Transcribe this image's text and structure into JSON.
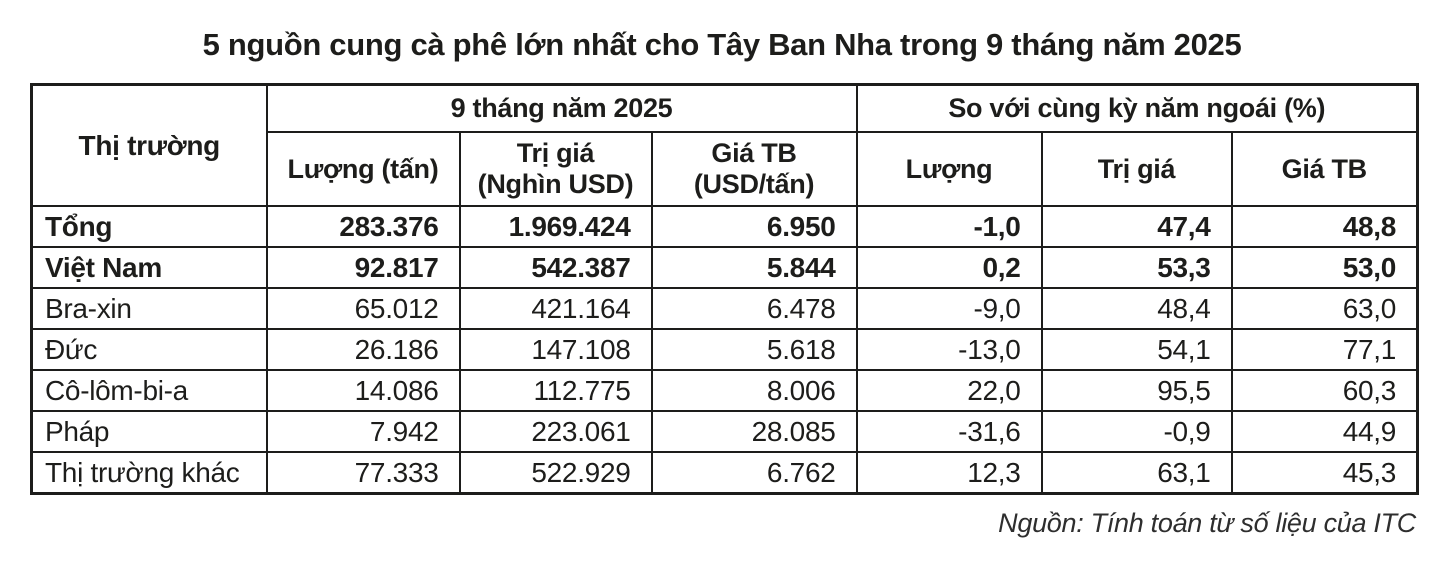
{
  "chart_data": {
    "type": "table",
    "title": "5 nguồn cung cà phê lớn nhất cho Tây Ban Nha trong 9 tháng năm 2025",
    "corner_header": "Thị trường",
    "group_headers": [
      "9 tháng năm 2025",
      "So với cùng kỳ năm ngoái (%)"
    ],
    "sub_headers": [
      "Lượng (tấn)",
      "Trị giá\n(Nghìn USD)",
      "Giá TB\n(USD/tấn)",
      "Lượng",
      "Trị giá",
      "Giá TB"
    ],
    "rows": [
      {
        "label": "Tổng",
        "bold": true,
        "values": [
          "283.376",
          "1.969.424",
          "6.950",
          "-1,0",
          "47,4",
          "48,8"
        ]
      },
      {
        "label": "Việt Nam",
        "bold": true,
        "values": [
          "92.817",
          "542.387",
          "5.844",
          "0,2",
          "53,3",
          "53,0"
        ]
      },
      {
        "label": "Bra-xin",
        "bold": false,
        "values": [
          "65.012",
          "421.164",
          "6.478",
          "-9,0",
          "48,4",
          "63,0"
        ]
      },
      {
        "label": "Đức",
        "bold": false,
        "values": [
          "26.186",
          "147.108",
          "5.618",
          "-13,0",
          "54,1",
          "77,1"
        ]
      },
      {
        "label": "Cô-lôm-bi-a",
        "bold": false,
        "values": [
          "14.086",
          "112.775",
          "8.006",
          "22,0",
          "95,5",
          "60,3"
        ]
      },
      {
        "label": "Pháp",
        "bold": false,
        "values": [
          "7.942",
          "223.061",
          "28.085",
          "-31,6",
          "-0,9",
          "44,9"
        ]
      },
      {
        "label": "Thị trường khác",
        "bold": false,
        "values": [
          "77.333",
          "522.929",
          "6.762",
          "12,3",
          "63,1",
          "45,3"
        ]
      }
    ],
    "source": "Nguồn: Tính toán từ số liệu của ITC",
    "colors": {
      "text": "#1d1d1b",
      "border": "#1d1d1b",
      "background": "#ffffff"
    }
  }
}
